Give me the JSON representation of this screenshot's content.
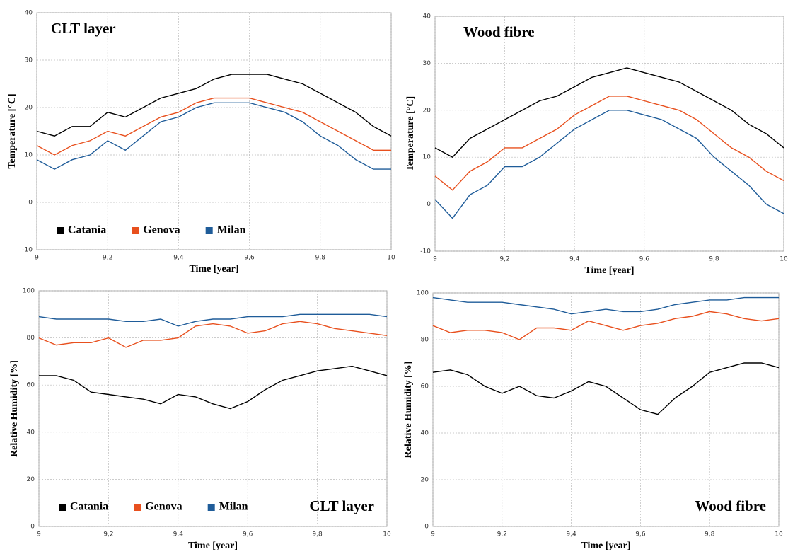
{
  "chart_data": [
    {
      "type": "line",
      "title": "CLT layer",
      "title_loc": "upper left",
      "x_label": "Time [year]",
      "y_label": "Temperature [°C]",
      "x": [
        9,
        9.05,
        9.1,
        9.15,
        9.2,
        9.25,
        9.3,
        9.35,
        9.4,
        9.45,
        9.5,
        9.55,
        9.6,
        9.65,
        9.7,
        9.75,
        9.8,
        9.85,
        9.9,
        9.95,
        10
      ],
      "series": [
        {
          "name": "Catania",
          "color": "#000000",
          "values": [
            15,
            14,
            16,
            16,
            19,
            18,
            20,
            22,
            23,
            24,
            26,
            27,
            27,
            27,
            26,
            25,
            23,
            21,
            19,
            16,
            14
          ]
        },
        {
          "name": "Genova",
          "color": "#e8501e",
          "values": [
            12,
            10,
            12,
            13,
            15,
            14,
            16,
            18,
            19,
            21,
            22,
            22,
            22,
            21,
            20,
            19,
            17,
            15,
            13,
            11,
            11
          ]
        },
        {
          "name": "Milan",
          "color": "#1f5c99",
          "values": [
            9,
            7,
            9,
            10,
            13,
            11,
            14,
            17,
            18,
            20,
            21,
            21,
            21,
            20,
            19,
            17,
            14,
            12,
            9,
            7,
            7
          ]
        }
      ],
      "xlim": [
        9,
        10
      ],
      "xticks": [
        9,
        {
          "value": 9.2,
          "label": "9,2"
        },
        {
          "value": 9.4,
          "label": "9,4"
        },
        {
          "value": 9.6,
          "label": "9,6"
        },
        {
          "value": 9.8,
          "label": "9,8"
        },
        10
      ],
      "ylim": [
        -10,
        40
      ],
      "yticks": [
        -10,
        0,
        10,
        20,
        30,
        40
      ],
      "grid": true,
      "legend": "lower left"
    },
    {
      "type": "line",
      "title": "Wood fibre",
      "title_loc": "upper left",
      "x_label": "Time [year]",
      "y_label": "Temperature [°C]",
      "x": [
        9,
        9.05,
        9.1,
        9.15,
        9.2,
        9.25,
        9.3,
        9.35,
        9.4,
        9.45,
        9.5,
        9.55,
        9.6,
        9.65,
        9.7,
        9.75,
        9.8,
        9.85,
        9.9,
        9.95,
        10
      ],
      "series": [
        {
          "name": "Catania",
          "color": "#000000",
          "values": [
            12,
            10,
            14,
            16,
            18,
            20,
            22,
            23,
            25,
            27,
            28,
            29,
            28,
            27,
            26,
            24,
            22,
            20,
            17,
            15,
            12
          ]
        },
        {
          "name": "Genova",
          "color": "#e8501e",
          "values": [
            6,
            3,
            7,
            9,
            12,
            12,
            14,
            16,
            19,
            21,
            23,
            23,
            22,
            21,
            20,
            18,
            15,
            12,
            10,
            7,
            5
          ]
        },
        {
          "name": "Milan",
          "color": "#1f5c99",
          "values": [
            1,
            -3,
            2,
            4,
            8,
            8,
            10,
            13,
            16,
            18,
            20,
            20,
            19,
            18,
            16,
            14,
            10,
            7,
            4,
            0,
            -2
          ]
        }
      ],
      "xlim": [
        9,
        10
      ],
      "xticks": [
        9,
        {
          "value": 9.2,
          "label": "9,2"
        },
        {
          "value": 9.4,
          "label": "9,4"
        },
        {
          "value": 9.6,
          "label": "9,6"
        },
        {
          "value": 9.8,
          "label": "9,8"
        },
        10
      ],
      "ylim": [
        -10,
        40
      ],
      "yticks": [
        -10,
        0,
        10,
        20,
        30,
        40
      ],
      "grid": true
    },
    {
      "type": "line",
      "title": "CLT layer",
      "title_loc": "lower right",
      "x_label": "Time [year]",
      "y_label": "Relative Humidity [%]",
      "x": [
        9,
        9.05,
        9.1,
        9.15,
        9.2,
        9.25,
        9.3,
        9.35,
        9.4,
        9.45,
        9.5,
        9.55,
        9.6,
        9.65,
        9.7,
        9.75,
        9.8,
        9.85,
        9.9,
        9.95,
        10
      ],
      "series": [
        {
          "name": "Catania",
          "color": "#000000",
          "values": [
            64,
            64,
            62,
            57,
            56,
            55,
            54,
            52,
            56,
            55,
            52,
            50,
            53,
            58,
            62,
            64,
            66,
            67,
            68,
            66,
            64
          ]
        },
        {
          "name": "Genova",
          "color": "#e8501e",
          "values": [
            80,
            77,
            78,
            78,
            80,
            76,
            79,
            79,
            80,
            85,
            86,
            85,
            82,
            83,
            86,
            87,
            86,
            84,
            83,
            82,
            81
          ]
        },
        {
          "name": "Milan",
          "color": "#1f5c99",
          "values": [
            89,
            88,
            88,
            88,
            88,
            87,
            87,
            88,
            85,
            87,
            88,
            88,
            89,
            89,
            89,
            90,
            90,
            90,
            90,
            90,
            89
          ]
        }
      ],
      "xlim": [
        9,
        10
      ],
      "xticks": [
        9,
        {
          "value": 9.2,
          "label": "9,2"
        },
        {
          "value": 9.4,
          "label": "9,4"
        },
        {
          "value": 9.6,
          "label": "9,6"
        },
        {
          "value": 9.8,
          "label": "9,8"
        },
        10
      ],
      "ylim": [
        0,
        100
      ],
      "yticks": [
        0,
        20,
        40,
        60,
        80,
        100
      ],
      "grid": true,
      "legend": "lower left"
    },
    {
      "type": "line",
      "title": "Wood fibre",
      "title_loc": "lower right",
      "x_label": "Time [year]",
      "y_label": "Relative Humidity [%]",
      "x": [
        9,
        9.05,
        9.1,
        9.15,
        9.2,
        9.25,
        9.3,
        9.35,
        9.4,
        9.45,
        9.5,
        9.55,
        9.6,
        9.65,
        9.7,
        9.75,
        9.8,
        9.85,
        9.9,
        9.95,
        10
      ],
      "series": [
        {
          "name": "Catania",
          "color": "#000000",
          "values": [
            66,
            67,
            65,
            60,
            57,
            60,
            56,
            55,
            58,
            62,
            60,
            55,
            50,
            48,
            55,
            60,
            66,
            68,
            70,
            70,
            68
          ]
        },
        {
          "name": "Genova",
          "color": "#e8501e",
          "values": [
            86,
            83,
            84,
            84,
            83,
            80,
            85,
            85,
            84,
            88,
            86,
            84,
            86,
            87,
            89,
            90,
            92,
            91,
            89,
            88,
            89
          ]
        },
        {
          "name": "Milan",
          "color": "#1f5c99",
          "values": [
            98,
            97,
            96,
            96,
            96,
            95,
            94,
            93,
            91,
            92,
            93,
            92,
            92,
            93,
            95,
            96,
            97,
            97,
            98,
            98,
            98
          ]
        }
      ],
      "xlim": [
        9,
        10
      ],
      "xticks": [
        9,
        {
          "value": 9.2,
          "label": "9,2"
        },
        {
          "value": 9.4,
          "label": "9,4"
        },
        {
          "value": 9.6,
          "label": "9,6"
        },
        {
          "value": 9.8,
          "label": "9,8"
        },
        10
      ],
      "ylim": [
        0,
        100
      ],
      "yticks": [
        0,
        20,
        40,
        60,
        80,
        100
      ],
      "grid": true
    }
  ]
}
